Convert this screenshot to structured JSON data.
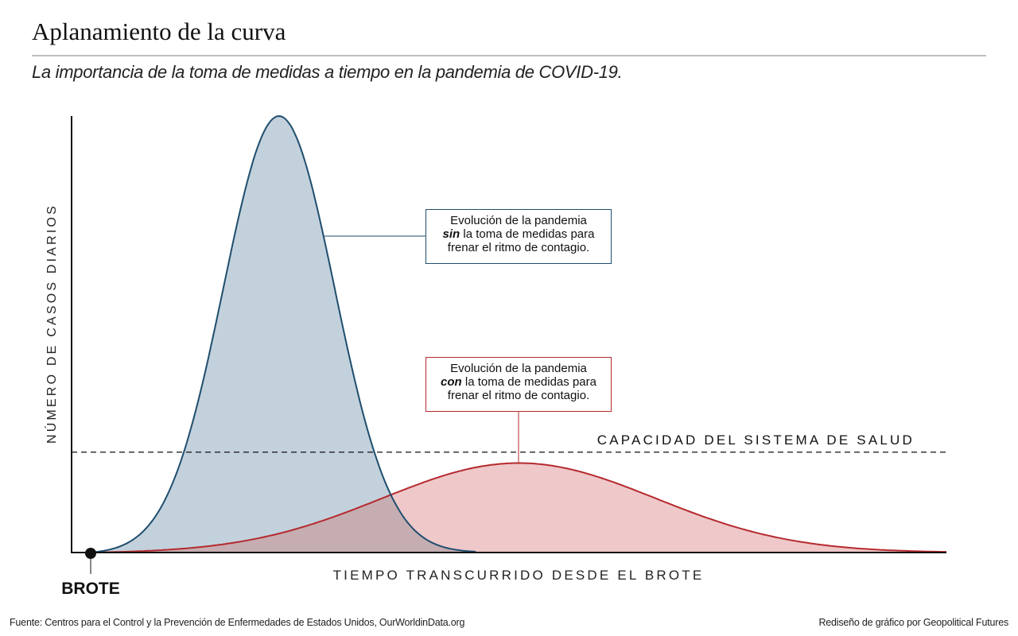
{
  "title": "Aplanamiento de la curva",
  "subtitle": "La importancia de la toma de medidas a tiempo en la pandemia de COVID-19.",
  "colors": {
    "without_measures_line": "#1f4e6e",
    "without_measures_fill": "#c3d1dc",
    "with_measures_line": "#b52a2e",
    "with_measures_fill": "#efc8ca",
    "overlap_fill": "#c5adb1",
    "axis": "#111111"
  },
  "chart_data": {
    "type": "area",
    "ylabel": "NÚMERO DE CASOS DIARIOS",
    "xlabel": "TIEMPO TRANSCURRIDO DESDE EL BROTE",
    "start_marker_label": "BROTE",
    "xlim": [
      0,
      100
    ],
    "ylim": [
      0,
      100
    ],
    "grid": false,
    "ticks": false,
    "capacity_line": {
      "value": 23,
      "label": "CAPACIDAD DEL SISTEMA DE SALUD",
      "style": "dashed"
    },
    "series": [
      {
        "name": "sin medidas",
        "shape": "gaussian",
        "peak_x": 22,
        "peak_y": 100,
        "spread": 6.5,
        "end_x": 45
      },
      {
        "name": "con medidas",
        "shape": "gaussian",
        "peak_x": 50,
        "peak_y": 20.5,
        "spread": 16,
        "end_x": 100
      }
    ],
    "annotations": [
      {
        "series": "sin medidas",
        "line1": "Evolución de la pandemia",
        "emph": "sin",
        "rest": " la toma de medidas para",
        "line3": "frenar el ritmo de contagio."
      },
      {
        "series": "con medidas",
        "line1": "Evolución de la pandemia",
        "emph": "con",
        "rest": " la toma de medidas para",
        "line3": "frenar el ritmo de contagio."
      }
    ]
  },
  "footer": {
    "source": "Fuente: Centros para el Control y la Prevención de Enfermedades de Estados Unidos, OurWorldinData.org",
    "credit": "Rediseño de gráfico por Geopolitical Futures"
  }
}
